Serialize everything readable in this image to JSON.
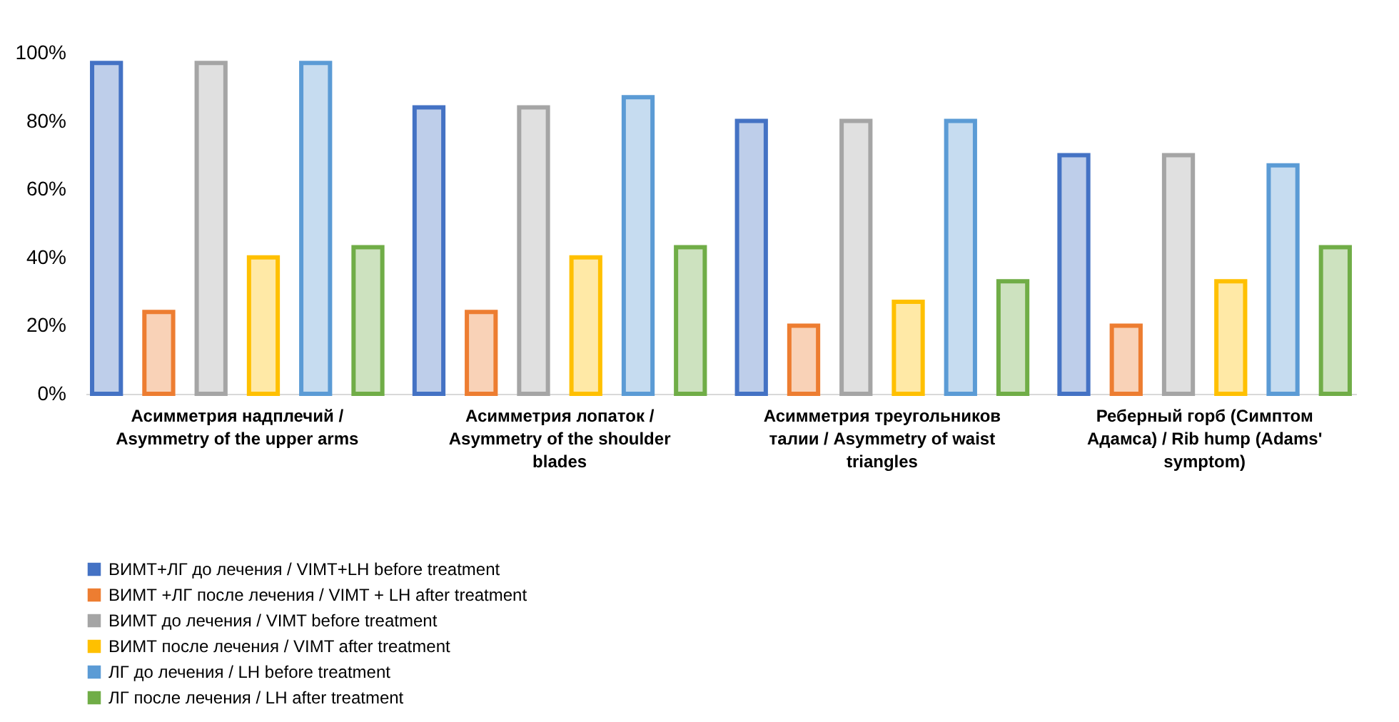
{
  "chart_data": {
    "type": "bar",
    "categories": [
      "Асимметрия надплечий / Asymmetry of the upper arms",
      "Асимметрия  лопаток / Asymmetry of the shoulder blades",
      "Асимметрия треугольников талии / Asymmetry of waist triangles",
      "Реберный горб (Симптом Адамса) / Rib hump (Adams' symptom)"
    ],
    "series": [
      {
        "name": "ВИМТ+ЛГ до лечения / VIMT+LH before treatment",
        "color": "#4472c4",
        "values": [
          97,
          84,
          80,
          70
        ]
      },
      {
        "name": "ВИМТ +ЛГ после лечения / VIMT + LH after treatment",
        "color": "#ed7d31",
        "values": [
          24,
          24,
          20,
          20
        ]
      },
      {
        "name": "ВИМТ до лечения / VIMT before treatment",
        "color": "#a5a5a5",
        "values": [
          97,
          84,
          80,
          70
        ]
      },
      {
        "name": "ВИМТ после лечения / VIMT after treatment",
        "color": "#ffc000",
        "values": [
          40,
          40,
          27,
          33
        ]
      },
      {
        "name": "ЛГ до лечения / LH before treatment",
        "color": "#5b9bd5",
        "values": [
          97,
          87,
          80,
          67
        ]
      },
      {
        "name": "ЛГ после лечения / LH after treatment",
        "color": "#70ad47",
        "values": [
          43,
          43,
          33,
          43
        ]
      }
    ],
    "ylim": [
      0,
      100
    ],
    "yticks": [
      {
        "value": 0,
        "label": "0%"
      },
      {
        "value": 20,
        "label": "20%"
      },
      {
        "value": 40,
        "label": "40%"
      },
      {
        "value": 60,
        "label": "60%"
      },
      {
        "value": 80,
        "label": "80%"
      },
      {
        "value": 100,
        "label": "100%"
      }
    ],
    "grid": false,
    "legend": "bottom"
  }
}
